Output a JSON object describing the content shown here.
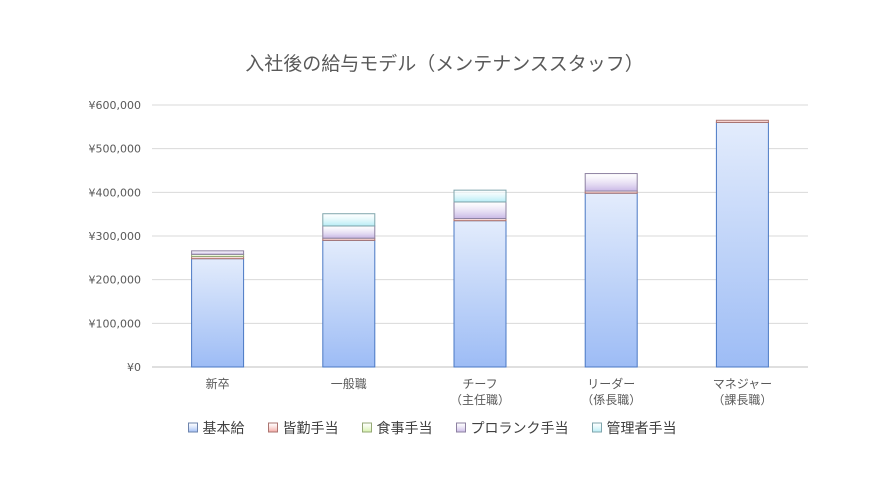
{
  "chart_data": {
    "type": "bar",
    "stacked": true,
    "title": "入社後の給与モデル（メンテナンススタッフ）",
    "xlabel": "",
    "ylabel": "",
    "categories": [
      [
        "新卒"
      ],
      [
        "一般職"
      ],
      [
        "チーフ",
        "（主任職）"
      ],
      [
        "リーダー",
        "（係長職）"
      ],
      [
        "マネジャー",
        "（課長職）"
      ]
    ],
    "ylim": [
      0,
      600000
    ],
    "yticks": [
      "¥0",
      "¥100,000",
      "¥200,000",
      "¥300,000",
      "¥400,000",
      "¥500,000",
      "¥600,000"
    ],
    "grid": true,
    "legend_position": "bottom",
    "series": [
      {
        "name": "基本給",
        "color": "#9dbcf5",
        "values": [
          248000,
          290000,
          335000,
          398000,
          560000
        ]
      },
      {
        "name": "皆勤手当",
        "color": "#f4a6a0",
        "values": [
          5000,
          5000,
          5000,
          5000,
          5000
        ]
      },
      {
        "name": "食事手当",
        "color": "#d4f0a8",
        "values": [
          5000,
          0,
          0,
          0,
          0
        ]
      },
      {
        "name": "プロランク手当",
        "color": "#c9b8e6",
        "values": [
          8000,
          28000,
          38000,
          40000,
          0
        ]
      },
      {
        "name": "管理者手当",
        "color": "#b6ecf5",
        "values": [
          0,
          28000,
          27000,
          0,
          0
        ]
      }
    ]
  }
}
